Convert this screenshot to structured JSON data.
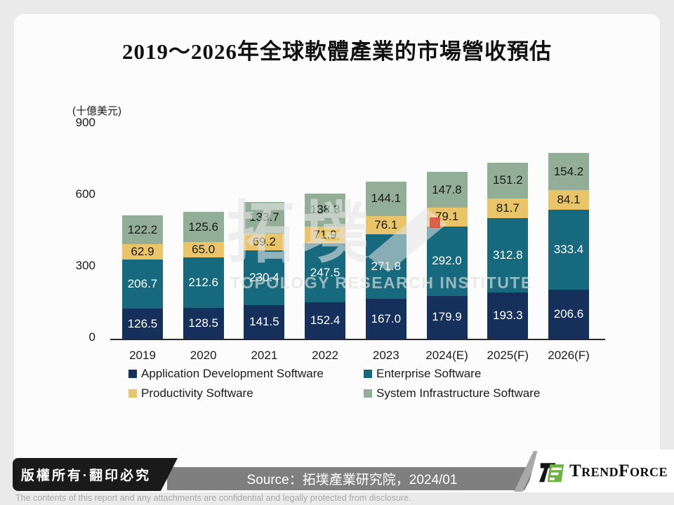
{
  "chart_data": {
    "type": "bar",
    "stacked": true,
    "title": "2019～2026年全球軟體產業的市場營收預估",
    "unit_label": "(十億美元)",
    "categories": [
      "2019",
      "2020",
      "2021",
      "2022",
      "2023",
      "2024(E)",
      "2025(F)",
      "2026(F)"
    ],
    "series": [
      {
        "name": "Application Development Software",
        "color": "#16305C",
        "label_color": "#FFFFFF",
        "values": [
          126.5,
          128.5,
          141.5,
          152.4,
          167.0,
          179.9,
          193.3,
          206.6
        ]
      },
      {
        "name": "Enterprise Software",
        "color": "#176A7D",
        "label_color": "#FFFFFF",
        "values": [
          206.7,
          212.6,
          230.4,
          247.5,
          271.8,
          292.0,
          312.8,
          333.4
        ]
      },
      {
        "name": "Productivity Software",
        "color": "#E9C469",
        "label_color": "#1A1A1A",
        "values": [
          62.9,
          65.0,
          69.2,
          71.9,
          76.1,
          79.1,
          81.7,
          84.1
        ]
      },
      {
        "name": "System Infrastructure Software",
        "color": "#93AE97",
        "label_color": "#1A1A1A",
        "values": [
          122.2,
          125.6,
          133.7,
          138.3,
          144.1,
          147.8,
          151.2,
          154.2
        ]
      }
    ],
    "yticks": [
      0,
      300,
      600,
      900
    ],
    "ylim": [
      0,
      900
    ],
    "grid": false,
    "legend_position": "bottom"
  },
  "watermark": {
    "chars": "拓墣",
    "subtitle": "TOPOLOGY RESEARCH INSTITUTE",
    "accent_color": "#D9533C"
  },
  "footer": {
    "copyright": "版權所有·翻印必究",
    "source": "Source：拓墣產業研究院，2024/01",
    "brand": "TrendForce",
    "brand_green": "#6CB33F",
    "disclaimer": "The contents of this report and any attachments are confidential and legally protected from disclosure."
  }
}
